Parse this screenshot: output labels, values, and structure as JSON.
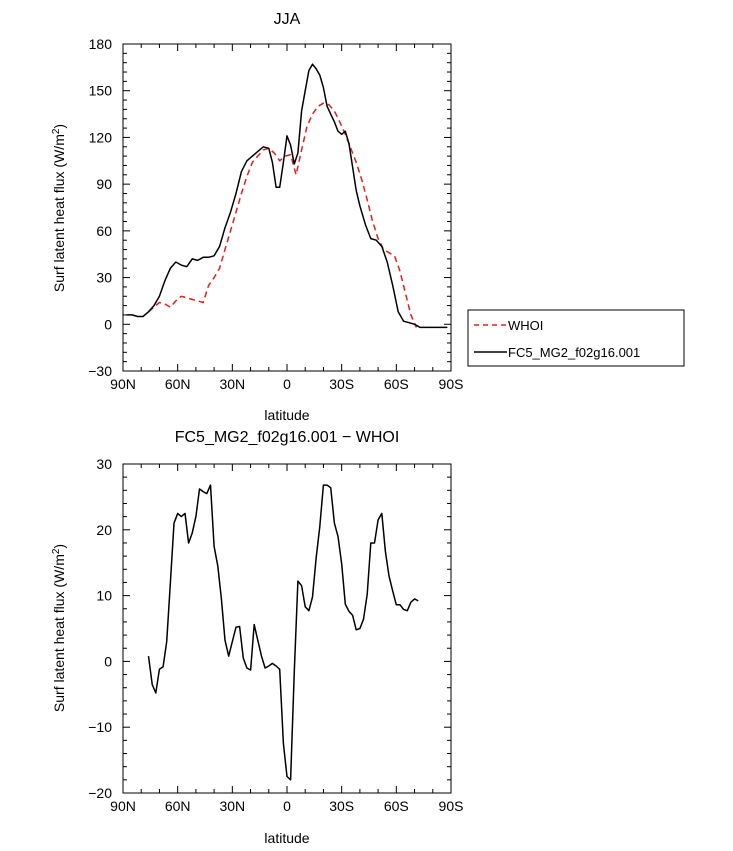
{
  "chart_data": [
    {
      "type": "line",
      "title": "JJA",
      "xlabel": "latitude",
      "ylabel": "Surf latent heat flux (W/m",
      "ylabel_sup": "2",
      "ylabel_end": ")",
      "xlim": [
        90,
        -90
      ],
      "ylim": [
        -30,
        180
      ],
      "xticks": [
        90,
        60,
        30,
        0,
        -30,
        -60,
        -90
      ],
      "xtick_labels": [
        "90N",
        "60N",
        "30N",
        "0",
        "30S",
        "60S",
        "90S"
      ],
      "yticks": [
        -30,
        0,
        30,
        60,
        90,
        120,
        150,
        180
      ],
      "ytick_labels": [
        "−30",
        "0",
        "30",
        "60",
        "90",
        "120",
        "150",
        "180"
      ],
      "legend_position": "right",
      "series": [
        {
          "name": "WHOI",
          "color": "#e0201b",
          "dash": "dashed",
          "x": [
            76,
            73,
            70,
            67,
            64,
            61,
            58,
            55,
            52,
            49,
            46,
            43,
            40,
            37,
            34,
            31,
            28,
            25,
            22,
            19,
            16,
            13,
            10,
            7,
            4,
            1,
            -2,
            -5,
            -8,
            -11,
            -14,
            -17,
            -20,
            -23,
            -26,
            -29,
            -32,
            -35,
            -38,
            -41,
            -44,
            -47,
            -50,
            -53,
            -56,
            -59,
            -62,
            -65,
            -68,
            -71
          ],
          "y": [
            8,
            11,
            14,
            13,
            11,
            15,
            18,
            17,
            16,
            15,
            14,
            25,
            30,
            36,
            48,
            60,
            72,
            84,
            95,
            104,
            108,
            112,
            113,
            110,
            105,
            108,
            109,
            96,
            112,
            127,
            135,
            140,
            142,
            141,
            137,
            130,
            122,
            113,
            104,
            93,
            80,
            66,
            55,
            48,
            46,
            44,
            34,
            20,
            6,
            -2
          ]
        },
        {
          "name": "FC5_MG2_f02g16.001",
          "color": "#000000",
          "dash": "solid",
          "x": [
            88,
            85,
            82,
            79,
            76,
            73,
            70,
            67,
            64,
            61,
            58,
            55,
            52,
            49,
            46,
            43,
            40,
            37,
            34,
            31,
            28,
            25,
            22,
            19,
            16,
            13,
            10,
            8,
            6,
            4,
            2,
            0,
            -2,
            -4,
            -6,
            -8,
            -10,
            -12,
            -14,
            -16,
            -18,
            -20,
            -22,
            -24,
            -26,
            -28,
            -30,
            -32,
            -34,
            -36,
            -38,
            -40,
            -43,
            -46,
            -49,
            -52,
            -55,
            -58,
            -61,
            -64,
            -67,
            -70,
            -73,
            -76,
            -79,
            -82,
            -85,
            -88
          ],
          "y": [
            6,
            6,
            5,
            5,
            8,
            12,
            18,
            28,
            36,
            40,
            38,
            37,
            42,
            41,
            43,
            43,
            44,
            50,
            62,
            72,
            84,
            98,
            105,
            108,
            111,
            114,
            113,
            104,
            88,
            88,
            104,
            121,
            115,
            103,
            110,
            137,
            150,
            163,
            167,
            164,
            160,
            152,
            140,
            135,
            130,
            124,
            122,
            124,
            116,
            101,
            86,
            76,
            64,
            55,
            54,
            50,
            40,
            25,
            8,
            2,
            1,
            0,
            -2,
            -2,
            -2,
            -2,
            -2,
            -2
          ]
        }
      ]
    },
    {
      "type": "line",
      "title": "FC5_MG2_f02g16.001 − WHOI",
      "xlabel": "latitude",
      "ylabel": "Surf latent heat flux (W/m",
      "ylabel_sup": "2",
      "ylabel_end": ")",
      "xlim": [
        90,
        -90
      ],
      "ylim": [
        -20,
        30
      ],
      "xticks": [
        90,
        60,
        30,
        0,
        -30,
        -60,
        -90
      ],
      "xtick_labels": [
        "90N",
        "60N",
        "30N",
        "0",
        "30S",
        "60S",
        "90S"
      ],
      "yticks": [
        -20,
        -10,
        0,
        10,
        20,
        30
      ],
      "ytick_labels": [
        "−20",
        "−10",
        "0",
        "10",
        "20",
        "30"
      ],
      "series": [
        {
          "name": "",
          "color": "#000000",
          "dash": "solid",
          "x": [
            76,
            74,
            72,
            70,
            68,
            66,
            64,
            62,
            60,
            58,
            56,
            54,
            52,
            50,
            48,
            46,
            44,
            42,
            40,
            38,
            36,
            34,
            32,
            30,
            28,
            26,
            24,
            22,
            20,
            18,
            16,
            14,
            12,
            10,
            8,
            6,
            4,
            2,
            0,
            -2,
            -4,
            -6,
            -8,
            -10,
            -12,
            -14,
            -16,
            -18,
            -20,
            -22,
            -24,
            -26,
            -28,
            -30,
            -32,
            -34,
            -36,
            -38,
            -40,
            -42,
            -44,
            -46,
            -48,
            -50,
            -52,
            -54,
            -56,
            -58,
            -60,
            -62,
            -64,
            -66,
            -68,
            -70,
            -72
          ],
          "y": [
            0.8,
            -3.5,
            -4.8,
            -1.2,
            -0.8,
            3,
            12,
            21,
            22.5,
            22,
            22.5,
            18,
            19.5,
            22,
            26.2,
            25.8,
            25.5,
            26.8,
            17.5,
            14.5,
            9.5,
            3.2,
            0.8,
            3,
            5.2,
            5.3,
            0.5,
            -1,
            -1.3,
            5.6,
            3.2,
            0.8,
            -1,
            -0.7,
            -0.3,
            -0.7,
            -1.2,
            -12.5,
            -17.5,
            -18,
            -1.5,
            12.2,
            11.5,
            8.3,
            7.7,
            9.8,
            15.8,
            20.5,
            26.8,
            26.8,
            26.4,
            21,
            19,
            14.8,
            8.7,
            7.6,
            7,
            4.8,
            5,
            6.4,
            10.2,
            18,
            18,
            21.5,
            22.5,
            16.7,
            13,
            10.7,
            8.6,
            8.6,
            7.9,
            7.7,
            9,
            9.5,
            9.2
          ]
        }
      ]
    }
  ]
}
